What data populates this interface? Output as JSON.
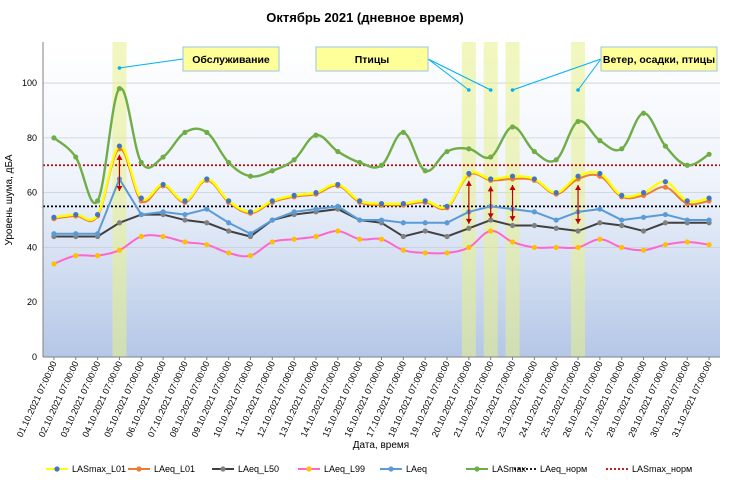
{
  "chart_data": {
    "type": "line",
    "title": "Октябрь 2021 (дневное время)",
    "xlabel": "Дата, время",
    "ylabel": "Уровень шума, дБА",
    "ylim": [
      0,
      115
    ],
    "yticks": [
      0,
      20,
      40,
      60,
      80,
      100
    ],
    "grid": true,
    "legend_position": "bottom",
    "categories": [
      "01.10.2021 07:00:00",
      "02.10.2021 07:00:00",
      "03.10.2021 07:00:00",
      "04.10.2021 07:00:00",
      "05.10.2021 07:00:00",
      "06.10.2021 07:00:00",
      "07.10.2021 07:00:00",
      "08.10.2021 07:00:00",
      "09.10.2021 07:00:00",
      "10.10.2021 07:00:00",
      "11.10.2021 07:00:00",
      "12.10.2021 07:00:00",
      "13.10.2021 07:00:00",
      "14.10.2021 07:00:00",
      "15.10.2021 07:00:00",
      "16.10.2021 07:00:00",
      "17.10.2021 07:00:00",
      "18.10.2021 07:00:00",
      "19.10.2021 07:00:00",
      "20.10.2021 07:00:00",
      "21.10.2021 07:00:00",
      "22.10.2021 07:00:00",
      "23.10.2021 07:00:00",
      "24.10.2021 07:00:00",
      "25.10.2021 07:00:00",
      "26.10.2021 07:00:00",
      "27.10.2021 07:00:00",
      "28.10.2021 07:00:00",
      "29.10.2021 07:00:00",
      "30.10.2021 07:00:00",
      "31.10.2021 07:00:00"
    ],
    "series": [
      {
        "name": "LASmax_L01",
        "color": "#ffff00",
        "marker": "#4472c4",
        "smooth": true,
        "values": [
          51,
          52,
          52,
          77,
          58,
          63,
          57,
          65,
          57,
          53,
          57,
          59,
          60,
          63,
          57,
          56,
          56,
          57,
          55,
          67,
          65,
          66,
          65,
          60,
          66,
          67,
          59,
          60,
          64,
          57,
          58
        ]
      },
      {
        "name": "LAeq_L01",
        "color": "#ed7d31",
        "marker": "#ed7d31",
        "smooth": true,
        "values": [
          50.5,
          51.5,
          51.5,
          76,
          57,
          62.5,
          56.5,
          64.5,
          56.5,
          52.5,
          56.5,
          58.5,
          59.5,
          62.5,
          56.5,
          55.5,
          55.5,
          56.5,
          54.5,
          66.5,
          64.5,
          65,
          64.5,
          59.5,
          65,
          66,
          58.5,
          59,
          62,
          56,
          57
        ]
      },
      {
        "name": "LAeq_L50",
        "color": "#404040",
        "marker": "#808080",
        "smooth": false,
        "values": [
          44,
          44,
          44,
          49,
          52,
          52,
          50,
          49,
          46,
          44,
          50,
          52,
          53,
          54,
          50,
          49,
          44,
          46,
          44,
          47,
          50,
          48,
          48,
          47,
          46,
          49,
          48,
          46,
          49,
          49,
          49
        ]
      },
      {
        "name": "LAeq_L99",
        "color": "#ff66cc",
        "marker": "#ffc000",
        "smooth": true,
        "values": [
          34,
          37,
          37,
          39,
          44,
          44,
          42,
          41,
          38,
          37,
          42,
          43,
          44,
          46,
          43,
          43,
          39,
          38,
          38,
          40,
          46,
          42,
          40,
          40,
          40,
          43,
          40,
          39,
          41,
          42,
          41
        ]
      },
      {
        "name": "LAeq",
        "color": "#5b9bd5",
        "marker": "#5b9bd5",
        "smooth": false,
        "values": [
          45,
          45,
          45,
          65,
          52,
          53,
          52,
          54,
          49,
          45,
          50,
          53,
          54,
          55,
          50,
          50,
          49,
          49,
          49,
          53,
          55,
          54,
          53,
          50,
          53,
          54,
          50,
          51,
          52,
          50,
          50
        ]
      },
      {
        "name": "LASmax",
        "color": "#70ad47",
        "marker": "#70ad47",
        "smooth": true,
        "values": [
          80,
          73,
          57,
          98,
          71,
          73,
          82,
          82,
          71,
          66,
          68,
          72,
          81,
          75,
          71,
          70,
          82,
          68,
          75,
          76,
          73,
          84,
          75,
          72,
          86,
          79,
          76,
          89,
          77,
          70,
          74
        ]
      },
      {
        "name": "LAeq_норм",
        "color": "#000000",
        "dash": "2,2",
        "constant": 55
      },
      {
        "name": "LASmax_норм",
        "color": "#c00000",
        "dash": "2,2",
        "constant": 70
      }
    ],
    "highlight_bands": [
      3,
      19,
      20,
      21,
      24
    ],
    "event_arrows": [
      3,
      19,
      20,
      21,
      24
    ],
    "annotations": [
      {
        "text": "Обслуживание",
        "targets": [
          3
        ]
      },
      {
        "text": "Птицы",
        "targets": [
          19,
          20
        ]
      },
      {
        "text": "Ветер, осадки, птицы",
        "targets": [
          21,
          24
        ]
      }
    ]
  }
}
